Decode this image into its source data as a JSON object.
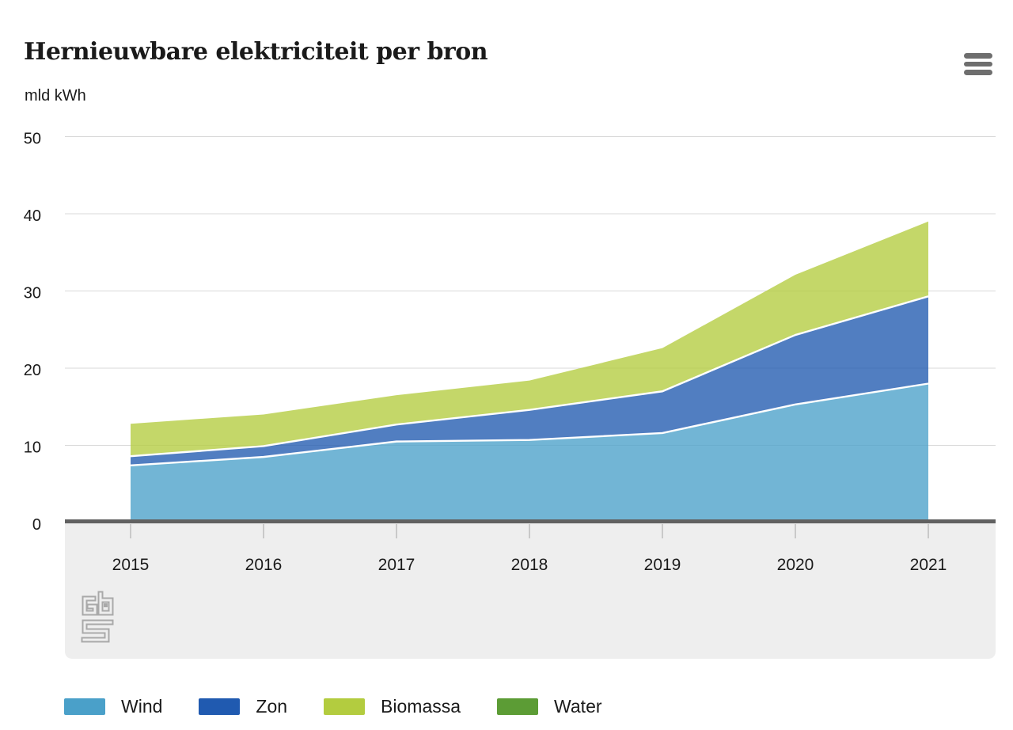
{
  "header": {
    "title": "Hernieuwbare elektriciteit per bron",
    "unit_label": "mld kWh"
  },
  "menu": {
    "icon": "hamburger-menu-icon"
  },
  "colors": {
    "wind": "#4AA0C9",
    "zon": "#205AB0",
    "biomassa": "#B3CC3F",
    "water": "#5C9C35",
    "grid_line": "#d9d9d9",
    "axis_line": "#616161",
    "axis_band": "#eeeeee",
    "tick_mark": "#bdbdbd",
    "menu_icon": "#6e6e6e",
    "logo": "#a9a9a9",
    "text": "#1a1a1a"
  },
  "chart_data": {
    "type": "area",
    "stacked": true,
    "title": "Hernieuwbare elektriciteit per bron",
    "ylabel": "mld kWh",
    "xlabel": "",
    "categories": [
      "2015",
      "2016",
      "2017",
      "2018",
      "2019",
      "2020",
      "2021"
    ],
    "series": [
      {
        "name": "Wind",
        "color": "#4AA0C9",
        "values": [
          7.3,
          8.4,
          10.4,
          10.6,
          11.5,
          15.2,
          17.9
        ]
      },
      {
        "name": "Zon",
        "color": "#205AB0",
        "values": [
          1.2,
          1.4,
          2.2,
          3.9,
          5.4,
          9.0,
          11.3
        ]
      },
      {
        "name": "Biomassa",
        "color": "#B3CC3F",
        "values": [
          4.2,
          4.1,
          3.8,
          3.8,
          5.6,
          7.8,
          9.7
        ]
      },
      {
        "name": "Water",
        "color": "#5C9C35",
        "values": [
          0.1,
          0.1,
          0.1,
          0.1,
          0.1,
          0.1,
          0.1
        ]
      }
    ],
    "stack_totals": [
      12.8,
      14.0,
      16.5,
      18.4,
      22.6,
      31.8,
      39.0
    ],
    "yticks": [
      0,
      10,
      20,
      30,
      40,
      50
    ],
    "ylim": [
      0,
      50
    ],
    "grid": "horizontal",
    "legend_position": "bottom",
    "stack_bottom_first": [
      "Water",
      "Wind",
      "Zon",
      "Biomassa"
    ]
  }
}
